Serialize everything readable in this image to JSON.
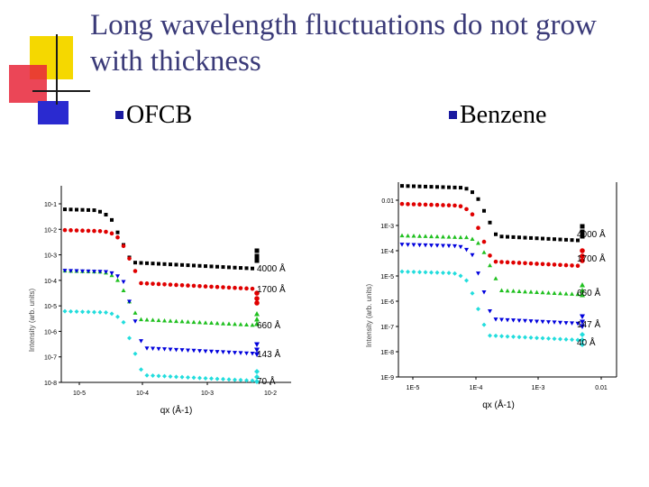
{
  "slide": {
    "title": "Long wavelength fluctuations do not grow with thickness",
    "accent_colors": {
      "yellow": "#f5d800",
      "red": "#e8263a",
      "blue": "#2a2ad0",
      "line": "#1a1a1a",
      "title": "#3a3a78"
    },
    "bullets": [
      {
        "label": "OFCB",
        "icon": "square-bullet-icon"
      },
      {
        "label": "Benzene",
        "icon": "square-bullet-icon"
      }
    ]
  },
  "chart_data": [
    {
      "type": "scatter",
      "name": "OFCB",
      "xlabel": "q",
      "xlabel_sub": "x",
      "xlabel_unit": "(Å-1)",
      "ylabel": "Intensity (arb. units)",
      "x_ticks": [
        "10-5",
        "10-4",
        "10-3",
        "10-2"
      ],
      "y_ticks": [
        "10-1",
        "10-2",
        "10-3",
        "10-4",
        "10-5",
        "10-6",
        "10-7",
        "10-8"
      ],
      "series": [
        {
          "name": "4000 Å",
          "color": "#000000",
          "marker": "square",
          "label": "4000 Å",
          "plateau": 22,
          "knee": 0.22,
          "tail": 85,
          "end": 78
        },
        {
          "name": "1700 Å",
          "color": "#e00000",
          "marker": "circle",
          "label": "1700 Å",
          "plateau": 45,
          "knee": 0.26,
          "tail": 108,
          "end": 125
        },
        {
          "name": "660 Å",
          "color": "#20c020",
          "marker": "triangle-up",
          "label": "660 Å",
          "plateau": 90,
          "knee": 0.25,
          "tail": 148,
          "end": 148
        },
        {
          "name": "143 Å",
          "color": "#0000dd",
          "marker": "triangle-down",
          "label": "143 Å",
          "plateau": 90,
          "knee": 0.27,
          "tail": 180,
          "end": 182
        },
        {
          "name": "70 Å",
          "color": "#22dddd",
          "marker": "diamond",
          "label": "70 Å",
          "plateau": 135,
          "knee": 0.27,
          "tail": 210,
          "end": 212
        }
      ]
    },
    {
      "type": "scatter",
      "name": "Benzene",
      "xlabel": "q",
      "xlabel_sub": "x",
      "xlabel_unit": "(Å-1)",
      "ylabel": "Intensity (arb. units)",
      "x_ticks": [
        "1E-5",
        "1E-4",
        "1E-3",
        "0.01"
      ],
      "y_ticks": [
        "0.01",
        "1E-3",
        "1E-4",
        "1E-5",
        "1E-6",
        "1E-7",
        "1E-8",
        "1E-9"
      ],
      "series": [
        {
          "name": "4000 Å",
          "color": "#000000",
          "marker": "square",
          "label": "4000 Å",
          "plateau": 0,
          "knee": 0.36,
          "tail": 60,
          "end": 55
        },
        {
          "name": "1700 Å",
          "color": "#e00000",
          "marker": "circle",
          "label": "1700 Å",
          "plateau": 20,
          "knee": 0.34,
          "tail": 88,
          "end": 82
        },
        {
          "name": "660 Å",
          "color": "#20c020",
          "marker": "triangle-up",
          "label": "660 Å",
          "plateau": 55,
          "knee": 0.38,
          "tail": 120,
          "end": 120
        },
        {
          "name": "147 Å",
          "color": "#0000dd",
          "marker": "triangle-down",
          "label": "147 Å",
          "plateau": 65,
          "knee": 0.34,
          "tail": 152,
          "end": 155
        },
        {
          "name": "40 Å",
          "color": "#22dddd",
          "marker": "diamond",
          "label": "40 Å",
          "plateau": 95,
          "knee": 0.32,
          "tail": 170,
          "end": 175
        }
      ]
    }
  ]
}
